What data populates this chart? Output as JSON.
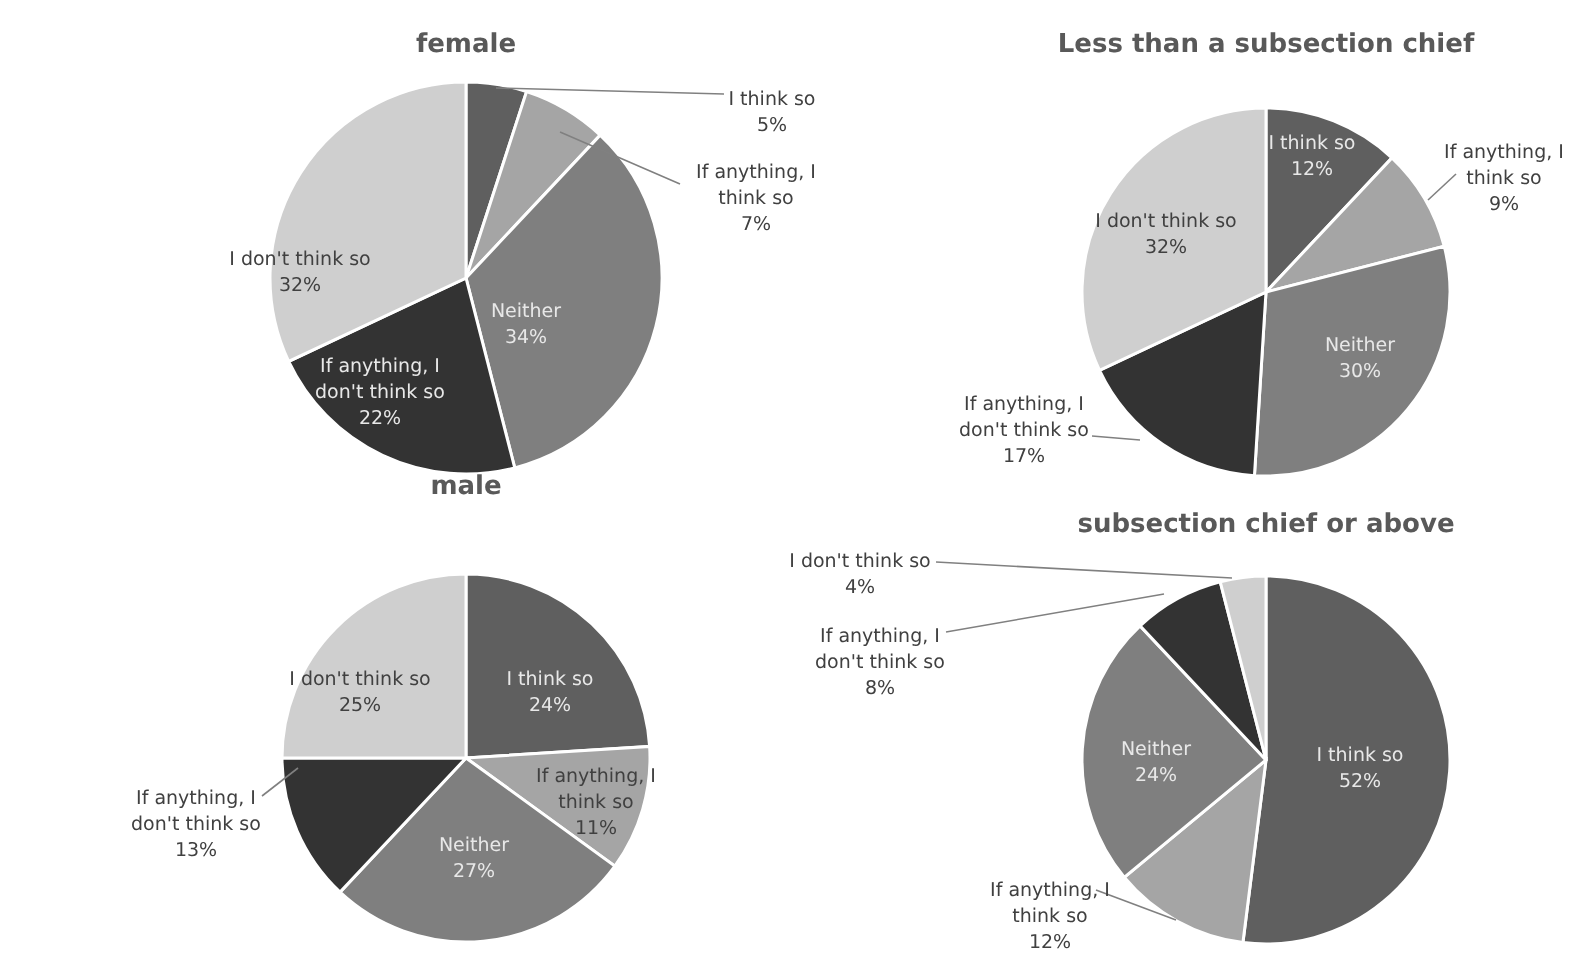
{
  "chart_data": [
    {
      "type": "pie",
      "title": "female",
      "categories": [
        "I think so",
        "If anything, I think so",
        "Neither",
        "If anything, I don't think so",
        "I don't think so"
      ],
      "values": [
        5,
        7,
        34,
        22,
        32
      ],
      "value_labels": [
        "5%",
        "7%",
        "34%",
        "22%",
        "32%"
      ],
      "colors": [
        "#5f5f5f",
        "#a5a5a5",
        "#7f7f7f",
        "#333333",
        "#cfcfcf"
      ]
    },
    {
      "type": "pie",
      "title": "Less than a subsection chief",
      "categories": [
        "I think so",
        "If anything, I think so",
        "Neither",
        "If anything, I don't think so",
        "I don't think so"
      ],
      "values": [
        12,
        9,
        30,
        17,
        32
      ],
      "value_labels": [
        "12%",
        "9%",
        "30%",
        "17%",
        "32%"
      ],
      "colors": [
        "#5f5f5f",
        "#a5a5a5",
        "#7f7f7f",
        "#333333",
        "#cfcfcf"
      ]
    },
    {
      "type": "pie",
      "title": "male",
      "categories": [
        "I think so",
        "If anything, I think so",
        "Neither",
        "If anything, I don't think so",
        "I don't think so"
      ],
      "values": [
        24,
        11,
        27,
        13,
        25
      ],
      "value_labels": [
        "24%",
        "11%",
        "27%",
        "13%",
        "25%"
      ],
      "colors": [
        "#5f5f5f",
        "#a5a5a5",
        "#7f7f7f",
        "#333333",
        "#cfcfcf"
      ]
    },
    {
      "type": "pie",
      "title": "subsection chief or above",
      "categories": [
        "I think so",
        "If anything, I think so",
        "Neither",
        "If anything, I don't think so",
        "I don't think so"
      ],
      "values": [
        52,
        12,
        24,
        8,
        4
      ],
      "value_labels": [
        "52%",
        "12%",
        "24%",
        "8%",
        "4%"
      ],
      "colors": [
        "#5f5f5f",
        "#a5a5a5",
        "#7f7f7f",
        "#333333",
        "#cfcfcf"
      ]
    }
  ]
}
